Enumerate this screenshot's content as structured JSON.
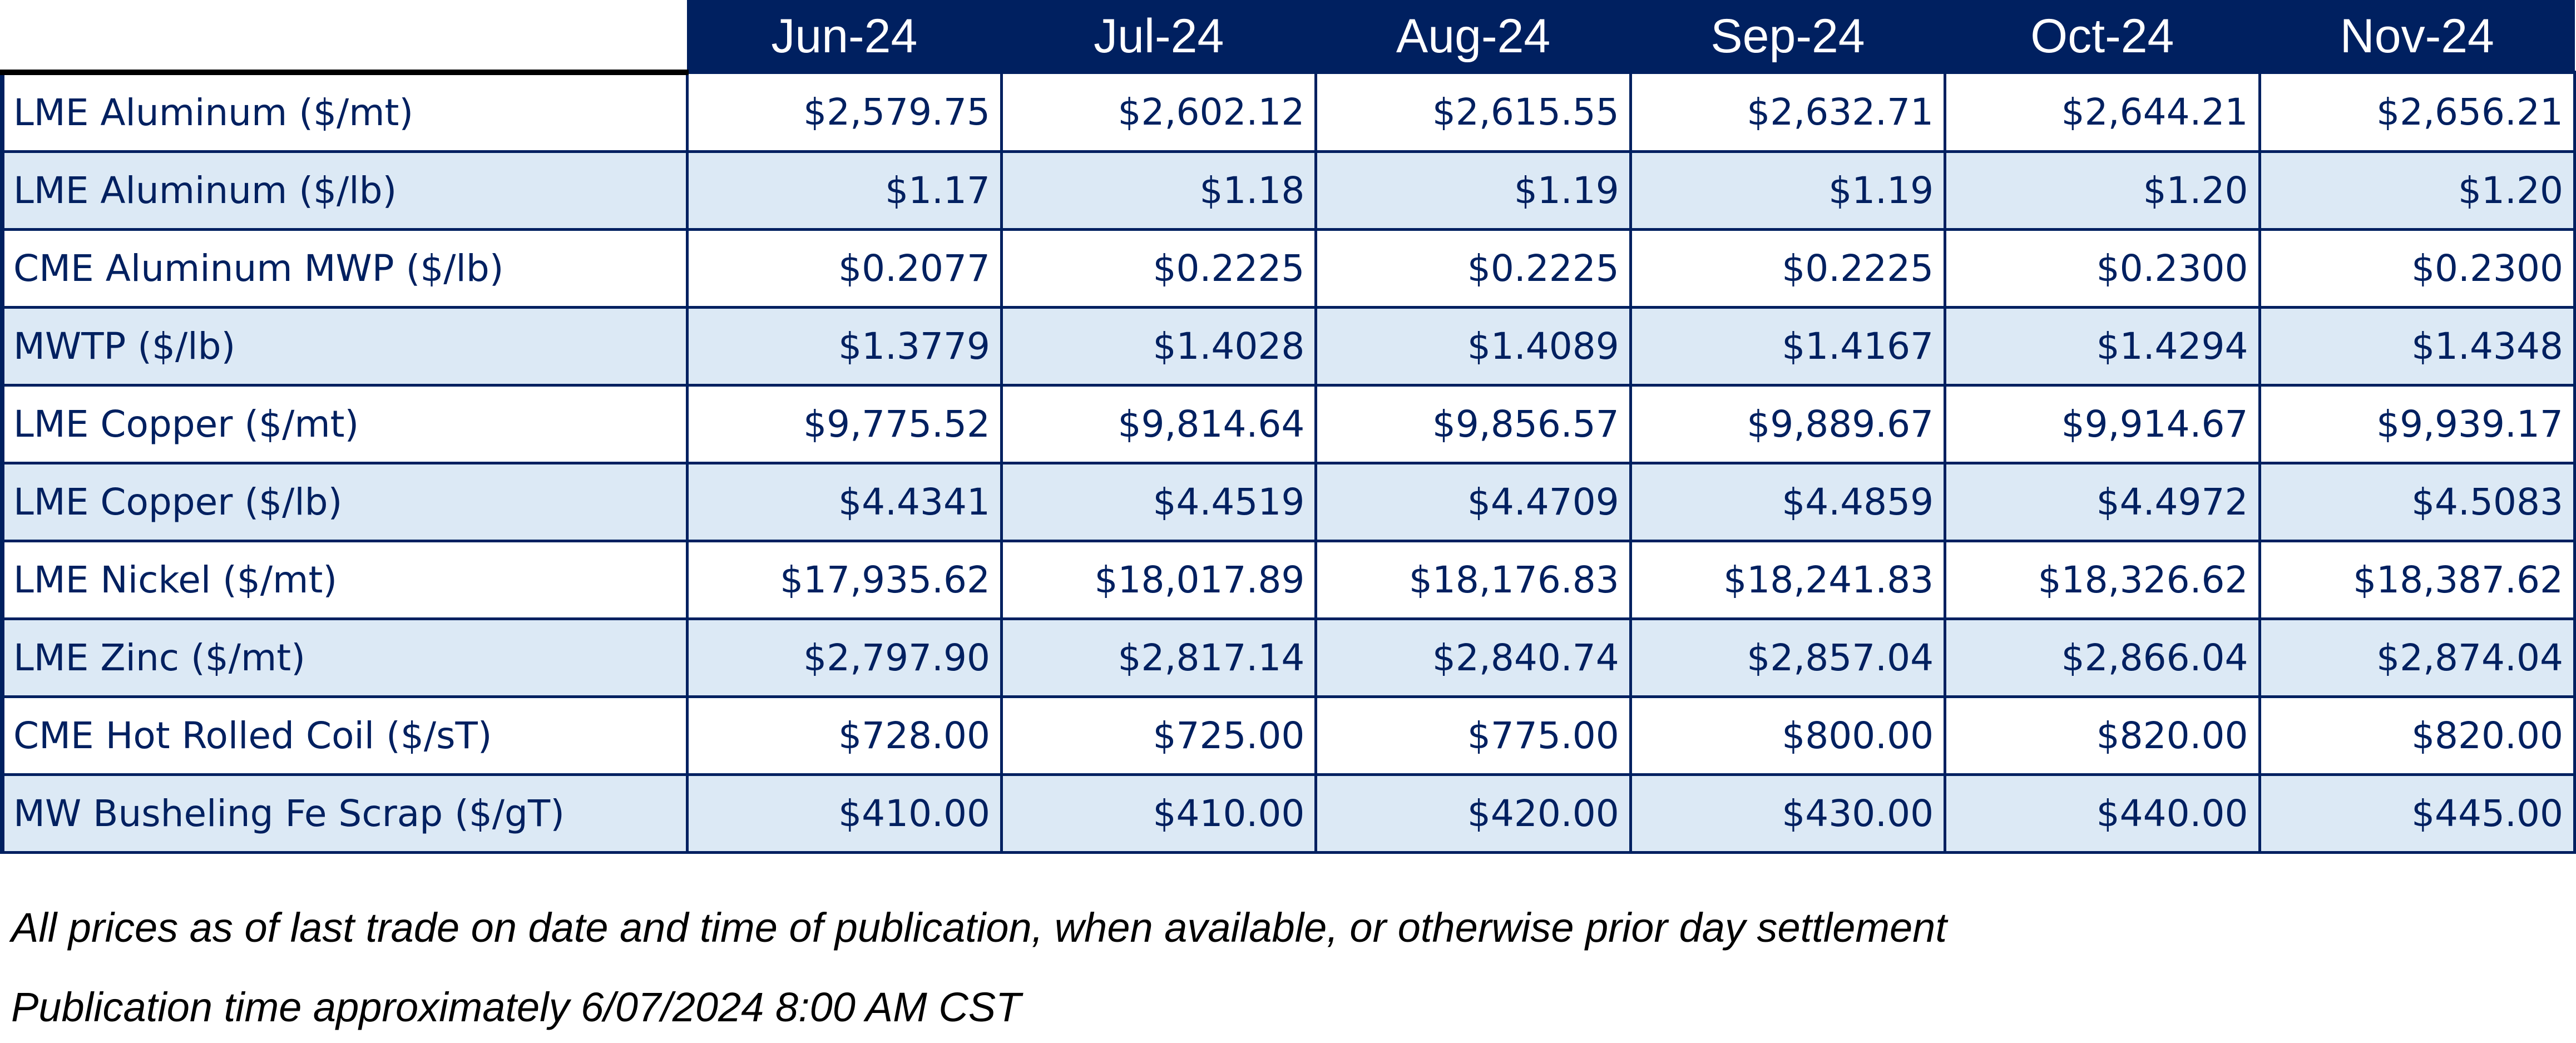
{
  "table": {
    "months": [
      "Jun-24",
      "Jul-24",
      "Aug-24",
      "Sep-24",
      "Oct-24",
      "Nov-24"
    ],
    "rows": [
      {
        "label": "LME Aluminum ($/mt)",
        "values": [
          "$2,579.75",
          "$2,602.12",
          "$2,615.55",
          "$2,632.71",
          "$2,644.21",
          "$2,656.21"
        ]
      },
      {
        "label": "LME Aluminum ($/lb)",
        "values": [
          "$1.17",
          "$1.18",
          "$1.19",
          "$1.19",
          "$1.20",
          "$1.20"
        ]
      },
      {
        "label": "CME Aluminum MWP ($/lb)",
        "values": [
          "$0.2077",
          "$0.2225",
          "$0.2225",
          "$0.2225",
          "$0.2300",
          "$0.2300"
        ]
      },
      {
        "label": "MWTP ($/lb)",
        "values": [
          "$1.3779",
          "$1.4028",
          "$1.4089",
          "$1.4167",
          "$1.4294",
          "$1.4348"
        ]
      },
      {
        "label": "LME Copper ($/mt)",
        "values": [
          "$9,775.52",
          "$9,814.64",
          "$9,856.57",
          "$9,889.67",
          "$9,914.67",
          "$9,939.17"
        ]
      },
      {
        "label": "LME Copper ($/lb)",
        "values": [
          "$4.4341",
          "$4.4519",
          "$4.4709",
          "$4.4859",
          "$4.4972",
          "$4.5083"
        ]
      },
      {
        "label": "LME Nickel ($/mt)",
        "values": [
          "$17,935.62",
          "$18,017.89",
          "$18,176.83",
          "$18,241.83",
          "$18,326.62",
          "$18,387.62"
        ]
      },
      {
        "label": "LME Zinc ($/mt)",
        "values": [
          "$2,797.90",
          "$2,817.14",
          "$2,840.74",
          "$2,857.04",
          "$2,866.04",
          "$2,874.04"
        ]
      },
      {
        "label": "CME Hot Rolled Coil ($/sT)",
        "values": [
          "$728.00",
          "$725.00",
          "$775.00",
          "$800.00",
          "$820.00",
          "$820.00"
        ]
      },
      {
        "label": "MW Busheling Fe Scrap ($/gT)",
        "values": [
          "$410.00",
          "$410.00",
          "$420.00",
          "$430.00",
          "$440.00",
          "$445.00"
        ]
      }
    ]
  },
  "footnotes": {
    "line1": "All prices as of last trade on date and time of publication, when available, or otherwise prior day settlement",
    "line2": "Publication time approximately 6/07/2024 8:00 AM CST"
  },
  "colors": {
    "header_bg": "#002060",
    "header_text": "#ffffff",
    "body_text": "#002060",
    "shaded_row_bg": "#dce9f5",
    "plain_row_bg": "#ffffff"
  }
}
